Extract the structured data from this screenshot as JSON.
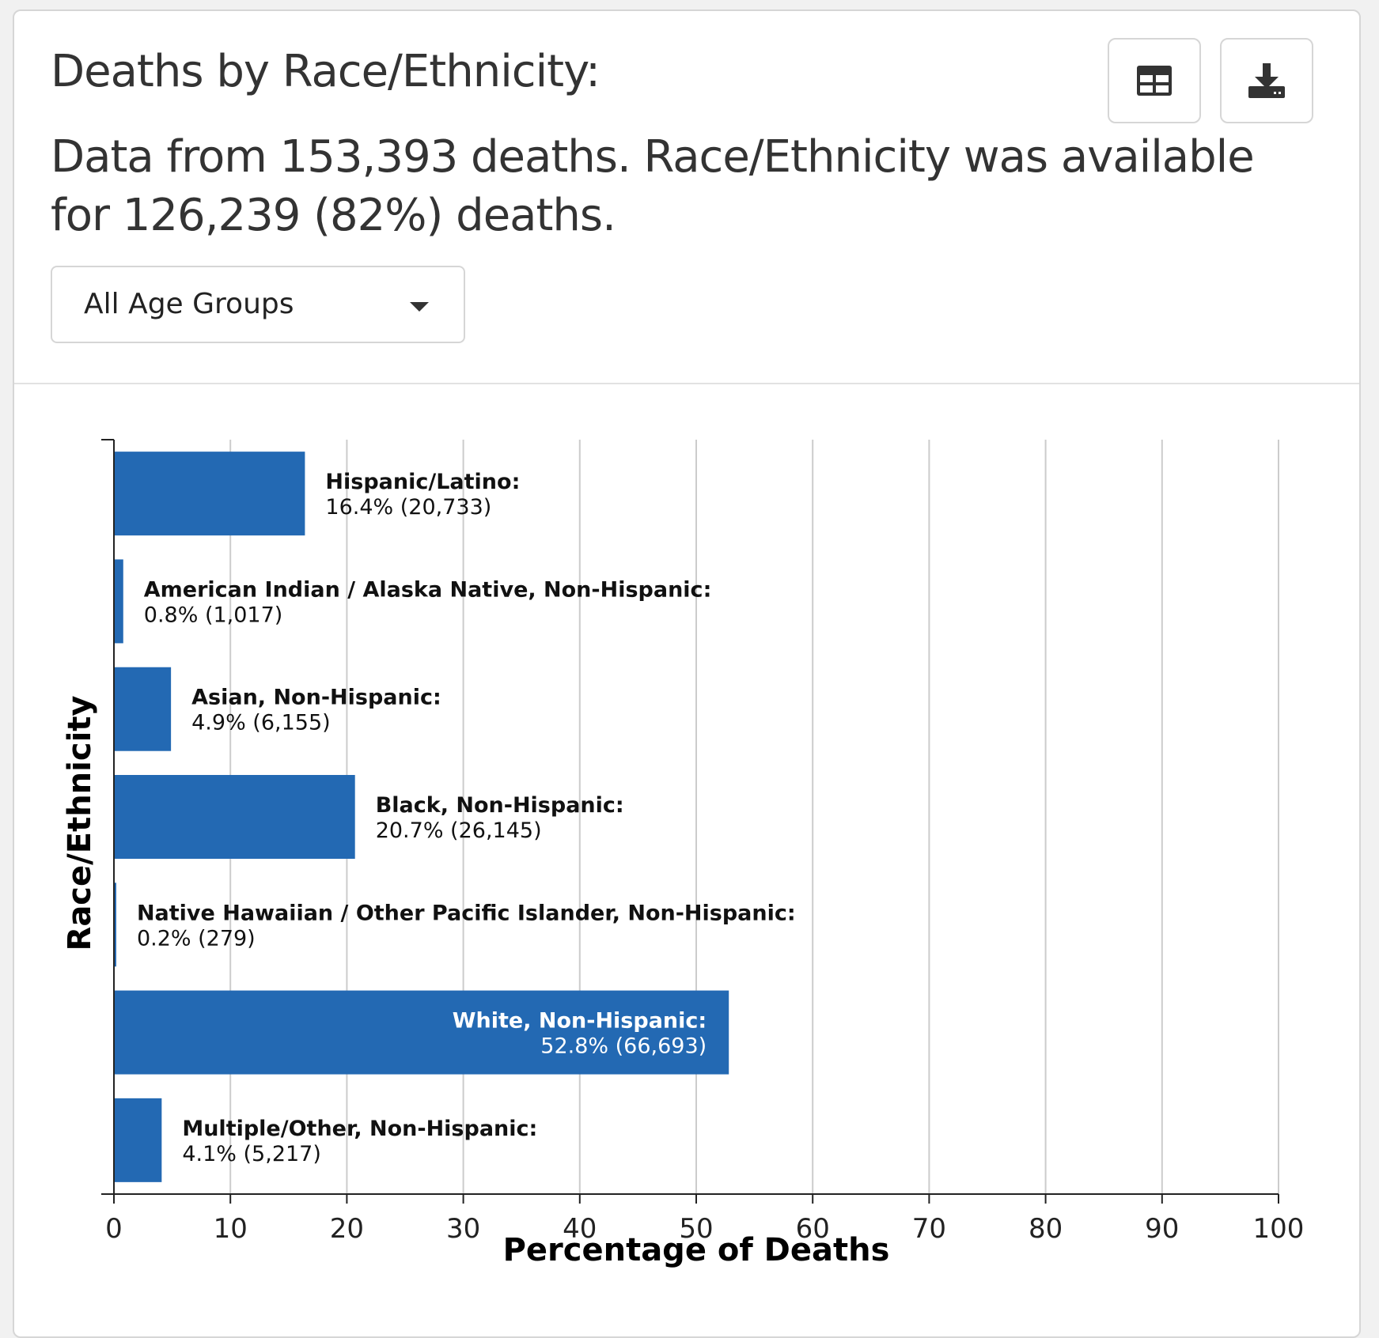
{
  "header": {
    "title": "Deaths by Race/Ethnicity:",
    "subtitle": "Data from 153,393 deaths. Race/Ethnicity was available for 126,239 (82%) deaths."
  },
  "toolbar": {
    "table_icon": "table-icon",
    "download_icon": "download-icon"
  },
  "filter": {
    "selected": "All Age Groups"
  },
  "colors": {
    "bar": "#2369b3",
    "grid": "#cccccc",
    "axis": "#222222"
  },
  "chart_data": {
    "type": "bar",
    "orientation": "horizontal",
    "xlabel": "Percentage of Deaths",
    "ylabel": "Race/Ethnicity",
    "xlim": [
      0,
      100
    ],
    "xticks": [
      0,
      10,
      20,
      30,
      40,
      50,
      60,
      70,
      80,
      90,
      100
    ],
    "grid": true,
    "categories": [
      "Hispanic/Latino:",
      "American Indian / Alaska Native, Non-Hispanic:",
      "Asian, Non-Hispanic:",
      "Black, Non-Hispanic:",
      "Native Hawaiian / Other Pacific Islander, Non-Hispanic:",
      "White, Non-Hispanic:",
      "Multiple/Other, Non-Hispanic:"
    ],
    "values": [
      16.4,
      0.8,
      4.9,
      20.7,
      0.2,
      52.8,
      4.1
    ],
    "value_labels": [
      "16.4% (20,733)",
      "0.8% (1,017)",
      "4.9% (6,155)",
      "20.7% (26,145)",
      "0.2% (279)",
      "52.8% (66,693)",
      "4.1% (5,217)"
    ]
  }
}
